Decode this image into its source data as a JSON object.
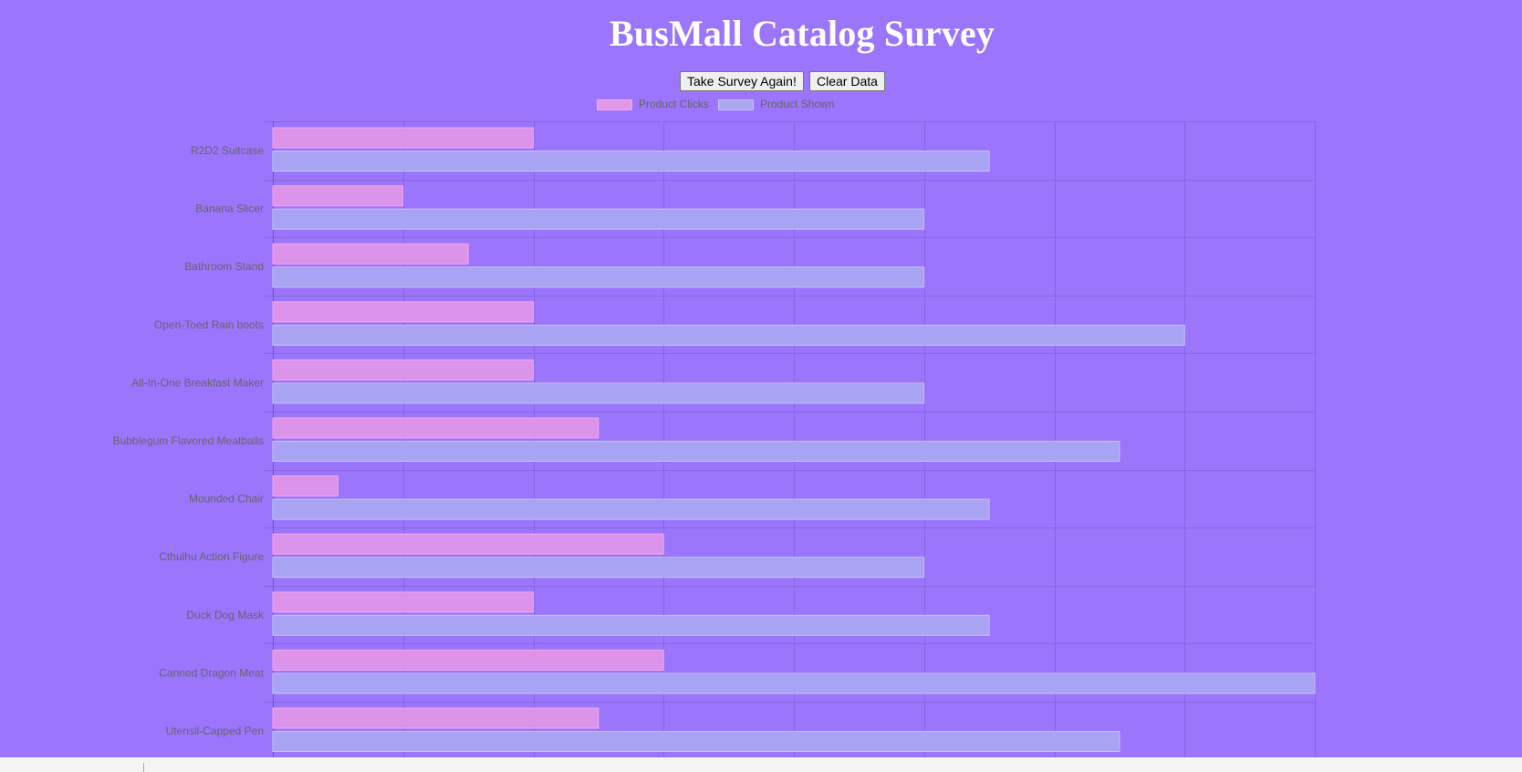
{
  "page": {
    "title": "BusMall Catalog Survey"
  },
  "buttons": {
    "take_survey": "Take Survey Again!",
    "clear_data": "Clear Data"
  },
  "colors": {
    "background": "#9b75fc",
    "clicks_fill": "#e298e8",
    "clicks_border": "#f5a8f0",
    "shown_fill": "#aaa8f2",
    "shown_border": "#c4c2f8",
    "grid": "#8a66e0",
    "text": "#666666"
  },
  "chart_data": {
    "type": "bar",
    "orientation": "horizontal",
    "title": "",
    "xlabel": "",
    "ylabel": "",
    "grid": true,
    "legend_position": "top",
    "xlim": [
      0,
      8
    ],
    "categories": [
      "R2D2 Suitcase",
      "Banana Slicer",
      "Bathroom Stand",
      "Open-Toed Rain boots",
      "All-In-One Breakfast Maker",
      "Bubblegum Flavored Meatballs",
      "Mounded Chair",
      "Cthulhu Action Figure",
      "Duck Dog Mask",
      "Canned Dragon Meat",
      "Utensil-Capped Pen"
    ],
    "series": [
      {
        "name": "Product Clicks",
        "values": [
          2,
          1,
          1.5,
          2,
          2,
          2.5,
          0.5,
          3,
          2,
          3,
          2.5
        ]
      },
      {
        "name": "Product Shown",
        "values": [
          5.5,
          5,
          5,
          7,
          5,
          6.5,
          5.5,
          5,
          5.5,
          8,
          6.5
        ]
      }
    ]
  }
}
